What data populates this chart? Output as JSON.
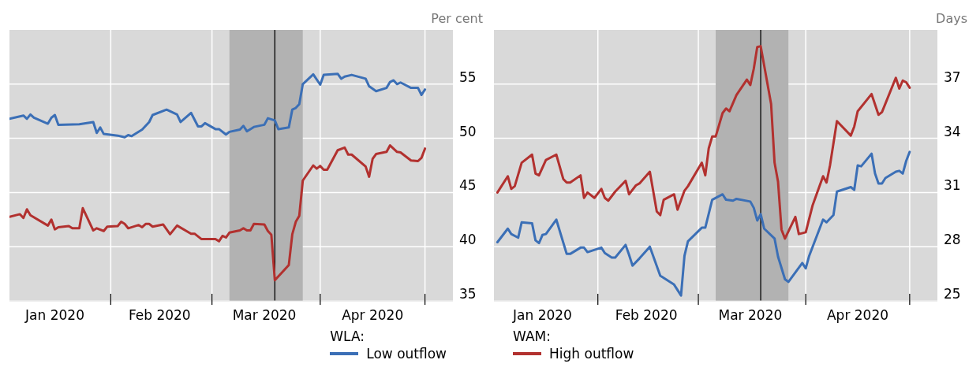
{
  "chart_data": [
    {
      "type": "line",
      "ylabel": "Per cent",
      "legend_title": "WLA:",
      "legend": "bottom",
      "grid": true,
      "xlim": [
        "2020-01-03",
        "2020-05-09"
      ],
      "xticks": [
        {
          "value": "2020-01-16",
          "label": "Jan 2020"
        },
        {
          "value": "2020-02-01",
          "label": null
        },
        {
          "value": "2020-02-15",
          "label": "Feb 2020"
        },
        {
          "value": "2020-03-01",
          "label": null
        },
        {
          "value": "2020-03-16",
          "label": "Mar 2020"
        },
        {
          "value": "2020-04-01",
          "label": null
        },
        {
          "value": "2020-04-16",
          "label": "Apr 2020"
        },
        {
          "value": "2020-05-01",
          "label": null
        }
      ],
      "ylim": [
        35,
        60
      ],
      "yticks": [
        35,
        40,
        45,
        50,
        55
      ],
      "bands": [
        {
          "axis": "x",
          "from": "2020-03-06",
          "to": "2020-03-27",
          "color": "#b2b2b2"
        }
      ],
      "ref_lines": [
        {
          "axis": "x",
          "value": "2020-03-19",
          "color": "#000000"
        }
      ],
      "series": [
        {
          "name": "Low outflow",
          "color": "#3b6fb6",
          "x": [
            "2020-01-03",
            "2020-01-07",
            "2020-01-08",
            "2020-01-09",
            "2020-01-10",
            "2020-01-14",
            "2020-01-15",
            "2020-01-16",
            "2020-01-17",
            "2020-01-23",
            "2020-01-27",
            "2020-01-28",
            "2020-01-29",
            "2020-01-30",
            "2020-02-03",
            "2020-02-05",
            "2020-02-06",
            "2020-02-07",
            "2020-02-10",
            "2020-02-12",
            "2020-02-13",
            "2020-02-17",
            "2020-02-20",
            "2020-02-21",
            "2020-02-24",
            "2020-02-26",
            "2020-02-27",
            "2020-02-28",
            "2020-03-02",
            "2020-03-03",
            "2020-03-05",
            "2020-03-06",
            "2020-03-09",
            "2020-03-10",
            "2020-03-11",
            "2020-03-13",
            "2020-03-16",
            "2020-03-17",
            "2020-03-19",
            "2020-03-20",
            "2020-03-23",
            "2020-03-24",
            "2020-03-25",
            "2020-03-26",
            "2020-03-27",
            "2020-03-30",
            "2020-04-01",
            "2020-04-02",
            "2020-04-06",
            "2020-04-07",
            "2020-04-08",
            "2020-04-10",
            "2020-04-14",
            "2020-04-15",
            "2020-04-17",
            "2020-04-20",
            "2020-04-21",
            "2020-04-22",
            "2020-04-23",
            "2020-04-24",
            "2020-04-27",
            "2020-04-29",
            "2020-04-30",
            "2020-05-01"
          ],
          "values": [
            51.8,
            52.1,
            51.8,
            52.2,
            51.9,
            51.35,
            51.9,
            52.15,
            51.25,
            51.3,
            51.5,
            50.5,
            51.0,
            50.4,
            50.25,
            50.1,
            50.3,
            50.2,
            50.8,
            51.5,
            52.15,
            52.65,
            52.2,
            51.5,
            52.35,
            51.1,
            51.1,
            51.4,
            50.85,
            50.85,
            50.35,
            50.6,
            50.8,
            51.15,
            50.65,
            51.05,
            51.25,
            51.85,
            51.65,
            50.85,
            51.0,
            52.65,
            52.8,
            53.15,
            55.0,
            55.9,
            54.95,
            55.85,
            55.95,
            55.5,
            55.7,
            55.85,
            55.5,
            54.8,
            54.35,
            54.65,
            55.2,
            55.35,
            55.0,
            55.15,
            54.65,
            54.65,
            54.0,
            54.5
          ]
        },
        {
          "color": "#b2312f",
          "x": [
            "2020-01-03",
            "2020-01-06",
            "2020-01-07",
            "2020-01-08",
            "2020-01-09",
            "2020-01-14",
            "2020-01-15",
            "2020-01-16",
            "2020-01-17",
            "2020-01-20",
            "2020-01-21",
            "2020-01-23",
            "2020-01-24",
            "2020-01-27",
            "2020-01-28",
            "2020-01-30",
            "2020-01-31",
            "2020-02-03",
            "2020-02-04",
            "2020-02-05",
            "2020-02-06",
            "2020-02-09",
            "2020-02-10",
            "2020-02-11",
            "2020-02-12",
            "2020-02-13",
            "2020-02-16",
            "2020-02-18",
            "2020-02-20",
            "2020-02-24",
            "2020-02-25",
            "2020-02-27",
            "2020-03-02",
            "2020-03-03",
            "2020-03-04",
            "2020-03-05",
            "2020-03-06",
            "2020-03-09",
            "2020-03-10",
            "2020-03-11",
            "2020-03-12",
            "2020-03-13",
            "2020-03-16",
            "2020-03-17",
            "2020-03-18",
            "2020-03-19",
            "2020-03-23",
            "2020-03-24",
            "2020-03-25",
            "2020-03-26",
            "2020-03-27",
            "2020-03-30",
            "2020-03-31",
            "2020-04-01",
            "2020-04-02",
            "2020-04-03",
            "2020-04-06",
            "2020-04-08",
            "2020-04-09",
            "2020-04-10",
            "2020-04-14",
            "2020-04-15",
            "2020-04-16",
            "2020-04-17",
            "2020-04-20",
            "2020-04-21",
            "2020-04-23",
            "2020-04-24",
            "2020-04-27",
            "2020-04-29",
            "2020-04-30",
            "2020-05-01"
          ],
          "values": [
            42.75,
            43.0,
            42.65,
            43.45,
            42.9,
            41.95,
            42.5,
            41.6,
            41.8,
            41.9,
            41.7,
            41.7,
            43.55,
            41.5,
            41.7,
            41.45,
            41.85,
            41.9,
            42.3,
            42.1,
            41.7,
            42.0,
            41.8,
            42.1,
            42.1,
            41.85,
            42.05,
            41.15,
            41.95,
            41.2,
            41.2,
            40.7,
            40.7,
            40.5,
            41.0,
            40.85,
            41.3,
            41.5,
            41.7,
            41.5,
            41.5,
            42.1,
            42.05,
            41.45,
            41.1,
            36.9,
            38.3,
            41.15,
            42.3,
            42.85,
            46.1,
            47.5,
            47.2,
            47.45,
            47.1,
            47.1,
            48.9,
            49.15,
            48.5,
            48.5,
            47.4,
            46.45,
            48.1,
            48.55,
            48.75,
            49.35,
            48.75,
            48.7,
            47.95,
            47.9,
            48.2,
            49.05
          ]
        }
      ]
    },
    {
      "type": "line",
      "ylabel": "Days",
      "legend_title": "WAM:",
      "legend": "bottom",
      "grid": true,
      "xlim": [
        "2020-01-02",
        "2020-05-09"
      ],
      "xticks": [
        {
          "value": "2020-01-16",
          "label": "Jan 2020"
        },
        {
          "value": "2020-02-01",
          "label": null
        },
        {
          "value": "2020-02-15",
          "label": "Feb 2020"
        },
        {
          "value": "2020-03-01",
          "label": null
        },
        {
          "value": "2020-03-16",
          "label": "Mar 2020"
        },
        {
          "value": "2020-04-01",
          "label": null
        },
        {
          "value": "2020-04-16",
          "label": "Apr 2020"
        },
        {
          "value": "2020-05-01",
          "label": null
        }
      ],
      "ylim": [
        25,
        40
      ],
      "yticks": [
        25,
        28,
        31,
        34,
        37
      ],
      "bands": [
        {
          "axis": "x",
          "from": "2020-03-06",
          "to": "2020-03-27",
          "color": "#b2b2b2"
        }
      ],
      "ref_lines": [
        {
          "axis": "x",
          "value": "2020-03-19",
          "color": "#000000"
        }
      ],
      "series": [
        {
          "color": "#3b6fb6",
          "x": [
            "2020-01-03",
            "2020-01-06",
            "2020-01-07",
            "2020-01-09",
            "2020-01-10",
            "2020-01-13",
            "2020-01-14",
            "2020-01-15",
            "2020-01-16",
            "2020-01-17",
            "2020-01-20",
            "2020-01-23",
            "2020-01-24",
            "2020-01-27",
            "2020-01-28",
            "2020-01-29",
            "2020-02-02",
            "2020-02-03",
            "2020-02-05",
            "2020-02-06",
            "2020-02-09",
            "2020-02-10",
            "2020-02-11",
            "2020-02-13",
            "2020-02-16",
            "2020-02-19",
            "2020-02-23",
            "2020-02-25",
            "2020-02-26",
            "2020-02-27",
            "2020-03-02",
            "2020-03-03",
            "2020-03-05",
            "2020-03-08",
            "2020-03-09",
            "2020-03-11",
            "2020-03-12",
            "2020-03-16",
            "2020-03-17",
            "2020-03-18",
            "2020-03-19",
            "2020-03-20",
            "2020-03-23",
            "2020-03-24",
            "2020-03-26",
            "2020-03-27",
            "2020-03-31",
            "2020-04-01",
            "2020-04-02",
            "2020-04-06",
            "2020-04-07",
            "2020-04-09",
            "2020-04-10",
            "2020-04-14",
            "2020-04-15",
            "2020-04-16",
            "2020-04-17",
            "2020-04-20",
            "2020-04-21",
            "2020-04-22",
            "2020-04-23",
            "2020-04-24",
            "2020-04-27",
            "2020-04-28",
            "2020-04-29",
            "2020-04-30",
            "2020-05-01"
          ],
          "values": [
            28.25,
            29.0,
            28.7,
            28.5,
            29.35,
            29.3,
            28.35,
            28.2,
            28.65,
            28.7,
            29.5,
            27.6,
            27.6,
            27.95,
            27.95,
            27.7,
            27.95,
            27.65,
            27.4,
            27.4,
            28.1,
            27.55,
            26.95,
            27.35,
            28.0,
            26.4,
            25.9,
            25.3,
            27.5,
            28.3,
            29.05,
            29.05,
            30.6,
            30.9,
            30.6,
            30.55,
            30.65,
            30.5,
            30.15,
            29.45,
            29.8,
            29.0,
            28.45,
            27.45,
            26.2,
            26.05,
            27.1,
            26.8,
            27.5,
            29.5,
            29.35,
            29.75,
            31.05,
            31.3,
            31.15,
            32.5,
            32.45,
            33.15,
            32.05,
            31.5,
            31.5,
            31.8,
            32.15,
            32.2,
            32.05,
            32.75,
            33.25
          ]
        },
        {
          "name": "High outflow",
          "color": "#b2312f",
          "x": [
            "2020-01-03",
            "2020-01-06",
            "2020-01-07",
            "2020-01-08",
            "2020-01-10",
            "2020-01-13",
            "2020-01-14",
            "2020-01-15",
            "2020-01-17",
            "2020-01-20",
            "2020-01-22",
            "2020-01-23",
            "2020-01-24",
            "2020-01-27",
            "2020-01-28",
            "2020-01-29",
            "2020-01-31",
            "2020-02-02",
            "2020-02-03",
            "2020-02-04",
            "2020-02-06",
            "2020-02-09",
            "2020-02-10",
            "2020-02-12",
            "2020-02-13",
            "2020-02-16",
            "2020-02-18",
            "2020-02-19",
            "2020-02-20",
            "2020-02-23",
            "2020-02-24",
            "2020-02-26",
            "2020-02-27",
            "2020-03-02",
            "2020-03-03",
            "2020-03-04",
            "2020-03-05",
            "2020-03-06",
            "2020-03-08",
            "2020-03-09",
            "2020-03-10",
            "2020-03-12",
            "2020-03-15",
            "2020-03-16",
            "2020-03-17",
            "2020-03-18",
            "2020-03-19",
            "2020-03-22",
            "2020-03-23",
            "2020-03-24",
            "2020-03-25",
            "2020-03-26",
            "2020-03-29",
            "2020-03-30",
            "2020-04-01",
            "2020-04-03",
            "2020-04-06",
            "2020-04-07",
            "2020-04-08",
            "2020-04-10",
            "2020-04-14",
            "2020-04-15",
            "2020-04-16",
            "2020-04-20",
            "2020-04-22",
            "2020-04-23",
            "2020-04-27",
            "2020-04-28",
            "2020-04-29",
            "2020-04-30",
            "2020-05-01"
          ],
          "values": [
            31.0,
            31.9,
            31.2,
            31.35,
            32.65,
            33.1,
            32.05,
            31.95,
            32.8,
            33.1,
            31.75,
            31.55,
            31.55,
            31.95,
            30.7,
            31.0,
            30.7,
            31.2,
            30.7,
            30.55,
            31.05,
            31.65,
            30.9,
            31.4,
            31.5,
            32.15,
            29.95,
            29.75,
            30.6,
            30.9,
            30.05,
            31.1,
            31.35,
            32.65,
            31.95,
            33.45,
            34.1,
            34.1,
            35.4,
            35.65,
            35.5,
            36.4,
            37.25,
            36.95,
            37.85,
            39.05,
            39.1,
            35.9,
            32.65,
            31.6,
            28.95,
            28.45,
            29.65,
            28.7,
            28.8,
            30.3,
            31.9,
            31.55,
            32.5,
            34.95,
            34.15,
            34.65,
            35.5,
            36.45,
            35.3,
            35.45,
            37.35,
            36.75,
            37.2,
            37.1,
            36.8
          ]
        }
      ]
    }
  ]
}
